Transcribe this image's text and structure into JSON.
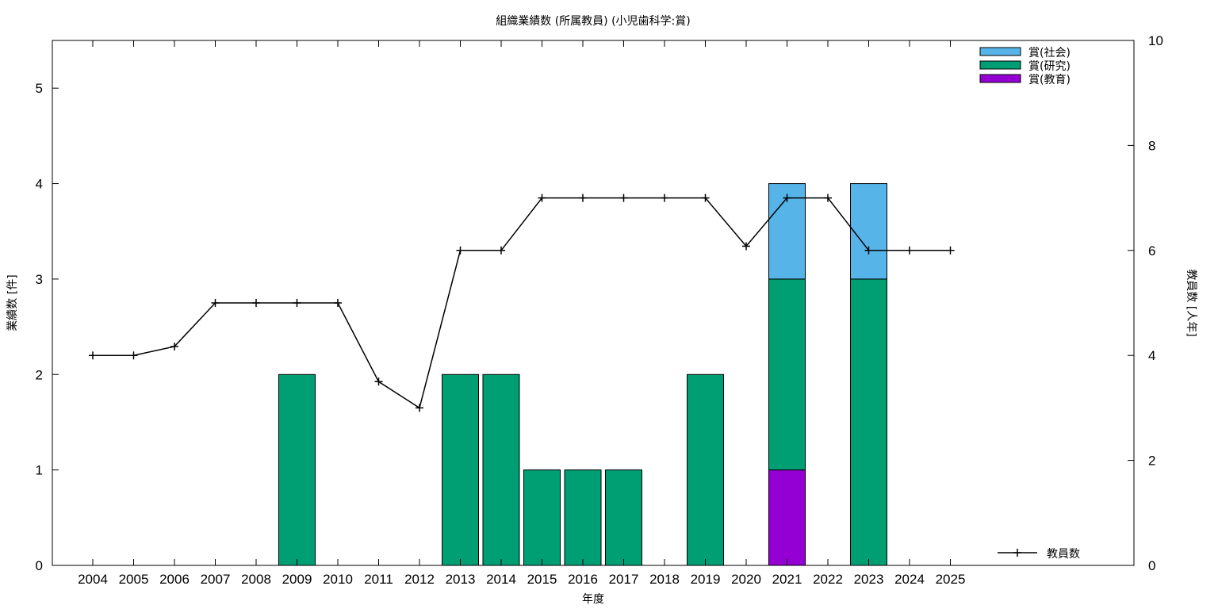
{
  "chart_data": {
    "type": "bar",
    "title": "組織業績数 (所属教員) (小児歯科学:賞)",
    "xlabel": "年度",
    "ylabel": "業績数 [件]",
    "y2label": "教員数 [人年]",
    "categories": [
      "2004",
      "2005",
      "2006",
      "2007",
      "2008",
      "2009",
      "2010",
      "2011",
      "2012",
      "2013",
      "2014",
      "2015",
      "2016",
      "2017",
      "2018",
      "2019",
      "2020",
      "2021",
      "2022",
      "2023",
      "2024",
      "2025"
    ],
    "ylim": [
      0,
      5.5
    ],
    "y_ticks": [
      0,
      1,
      2,
      3,
      4,
      5
    ],
    "y2lim": [
      0,
      10
    ],
    "y2_ticks": [
      0,
      2,
      4,
      6,
      8,
      10
    ],
    "stacked": true,
    "series": [
      {
        "name": "賞(教育)",
        "color": "#9400d3",
        "values": [
          0,
          0,
          0,
          0,
          0,
          0,
          0,
          0,
          0,
          0,
          0,
          0,
          0,
          0,
          0,
          0,
          0,
          1,
          0,
          0,
          0,
          0
        ]
      },
      {
        "name": "賞(研究)",
        "color": "#009e73",
        "values": [
          0,
          0,
          0,
          0,
          0,
          2,
          0,
          0,
          0,
          2,
          2,
          1,
          1,
          1,
          0,
          2,
          0,
          2,
          0,
          3,
          0,
          0
        ]
      },
      {
        "name": "賞(社会)",
        "color": "#56b4e9",
        "values": [
          0,
          0,
          0,
          0,
          0,
          0,
          0,
          0,
          0,
          0,
          0,
          0,
          0,
          0,
          0,
          0,
          0,
          1,
          0,
          1,
          0,
          0
        ]
      }
    ],
    "line_series": {
      "name": "教員数",
      "axis": "right",
      "color": "#000000",
      "values": [
        4,
        4,
        4.17,
        5,
        5,
        5,
        5,
        3.5,
        3,
        6,
        6,
        7,
        7,
        7,
        7,
        7,
        6.08,
        7,
        7,
        6,
        6,
        6
      ]
    },
    "legend_placement": "top-right",
    "line_legend_placement": "bottom-right",
    "grid": false
  }
}
